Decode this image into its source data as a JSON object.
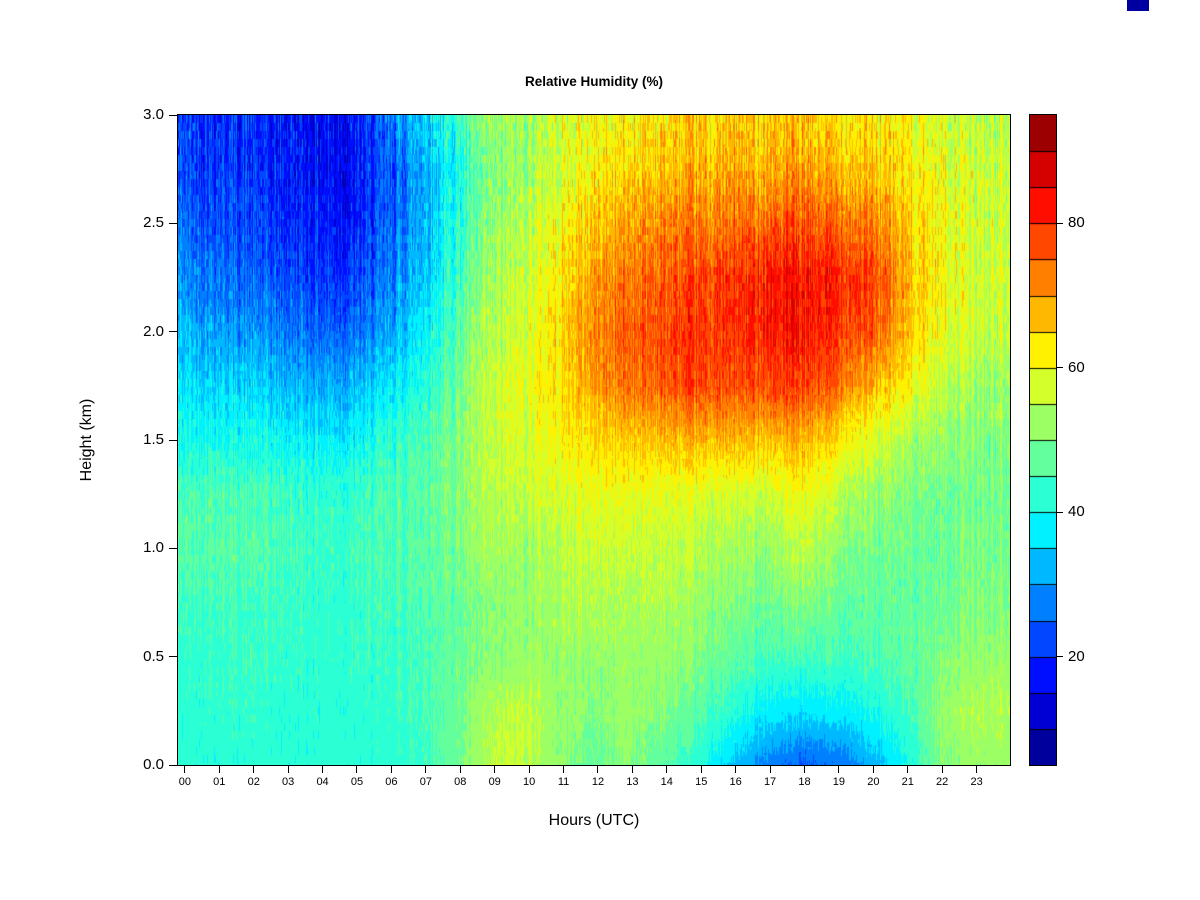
{
  "chart": {
    "title": "Relative Humidity (%)",
    "xlabel": "Hours (UTC)",
    "ylabel": "Height (km)"
  },
  "colors": {
    "background": "#ffffff",
    "axis": "#000000",
    "corner_artifact": "#0000a0"
  },
  "chart_data": {
    "type": "heatmap",
    "title": "Relative Humidity (%)",
    "xlabel": "Hours (UTC)",
    "ylabel": "Height (km)",
    "colormap": "jet",
    "grid": false,
    "x_tick_labels": [
      "00",
      "01",
      "02",
      "03",
      "04",
      "05",
      "06",
      "07",
      "08",
      "09",
      "10",
      "11",
      "12",
      "13",
      "14",
      "15",
      "16",
      "17",
      "18",
      "19",
      "20",
      "21",
      "22",
      "23"
    ],
    "x_tick_values": [
      0,
      1,
      2,
      3,
      4,
      5,
      6,
      7,
      8,
      9,
      10,
      11,
      12,
      13,
      14,
      15,
      16,
      17,
      18,
      19,
      20,
      21,
      22,
      23
    ],
    "y_tick_labels": [
      "0.0",
      "0.5",
      "1.0",
      "1.5",
      "2.0",
      "2.5",
      "3.0"
    ],
    "y_tick_values": [
      0,
      0.5,
      1,
      1.5,
      2,
      2.5,
      3
    ],
    "x_range": [
      0,
      23.97
    ],
    "y_range": [
      0,
      3
    ],
    "z_range": [
      5,
      95
    ],
    "levels_step": 5,
    "colorbar_tick_values": [
      20,
      40,
      60,
      80
    ],
    "colorbar_tick_labels": [
      "20",
      "40",
      "60",
      "80"
    ],
    "heights_km": [
      0,
      0.25,
      0.5,
      0.75,
      1.0,
      1.25,
      1.5,
      1.75,
      2.0,
      2.25,
      2.5,
      2.75,
      3.0
    ],
    "hours_utc": [
      0,
      1,
      2,
      3,
      4,
      5,
      6,
      7,
      8,
      9,
      10,
      11,
      12,
      13,
      14,
      15,
      16,
      17,
      18,
      19,
      20,
      21,
      22,
      23
    ],
    "values_note": "rows correspond to heights_km ascending (bottom to top); columns to hours_utc; units = % relative humidity",
    "values": [
      [
        42,
        42,
        42,
        42,
        42,
        42,
        42,
        44,
        48,
        55,
        56,
        51,
        48,
        51,
        46,
        42,
        34,
        28,
        24,
        26,
        32,
        40,
        50,
        52
      ],
      [
        42,
        43,
        43,
        42,
        42,
        42,
        43,
        45,
        48,
        54,
        56,
        52,
        50,
        52,
        50,
        46,
        42,
        38,
        36,
        38,
        40,
        44,
        52,
        54
      ],
      [
        43,
        44,
        44,
        43,
        43,
        43,
        43,
        45,
        48,
        50,
        52,
        52,
        52,
        53,
        52,
        50,
        47,
        45,
        45,
        45,
        45,
        47,
        50,
        52
      ],
      [
        44,
        45,
        44,
        44,
        43,
        43,
        44,
        46,
        48,
        50,
        52,
        54,
        54,
        54,
        54,
        52,
        50,
        49,
        50,
        48,
        47,
        47,
        48,
        50
      ],
      [
        46,
        47,
        46,
        45,
        44,
        44,
        45,
        47,
        49,
        53,
        53,
        55,
        57,
        57,
        56,
        54,
        53,
        52,
        55,
        52,
        49,
        48,
        48,
        49
      ],
      [
        45,
        46,
        45,
        44,
        43,
        43,
        45,
        47,
        50,
        54,
        56,
        58,
        60,
        60,
        59,
        58,
        57,
        57,
        60,
        56,
        52,
        50,
        49,
        49
      ],
      [
        40,
        41,
        40,
        39,
        38,
        38,
        42,
        46,
        50,
        55,
        58,
        62,
        64,
        66,
        67,
        67,
        67,
        67,
        67,
        64,
        58,
        54,
        52,
        50
      ],
      [
        37,
        36,
        35,
        33,
        32,
        32,
        36,
        42,
        48,
        55,
        60,
        64,
        70,
        74,
        76,
        77,
        77,
        78,
        78,
        75,
        68,
        62,
        56,
        52
      ],
      [
        33,
        31,
        29,
        27,
        26,
        25,
        30,
        38,
        46,
        54,
        58,
        65,
        72,
        76,
        77,
        79,
        79,
        82,
        82,
        80,
        76,
        67,
        60,
        56
      ],
      [
        29,
        27,
        25,
        23,
        21,
        21,
        26,
        34,
        44,
        52,
        57,
        63,
        70,
        74,
        76,
        77,
        79,
        82,
        82,
        82,
        78,
        68,
        62,
        57
      ],
      [
        26,
        24,
        22,
        20,
        19,
        18,
        23,
        32,
        42,
        50,
        55,
        61,
        66,
        70,
        72,
        73,
        73,
        76,
        76,
        75,
        72,
        66,
        61,
        57
      ],
      [
        23,
        22,
        20,
        18,
        17,
        16,
        22,
        32,
        40,
        48,
        53,
        58,
        62,
        65,
        66,
        67,
        68,
        68,
        69,
        68,
        66,
        63,
        60,
        57
      ],
      [
        22,
        21,
        20,
        18,
        17,
        17,
        25,
        36,
        44,
        51,
        54,
        58,
        60,
        62,
        63,
        64,
        65,
        66,
        65,
        64,
        63,
        61,
        58,
        55
      ]
    ]
  }
}
